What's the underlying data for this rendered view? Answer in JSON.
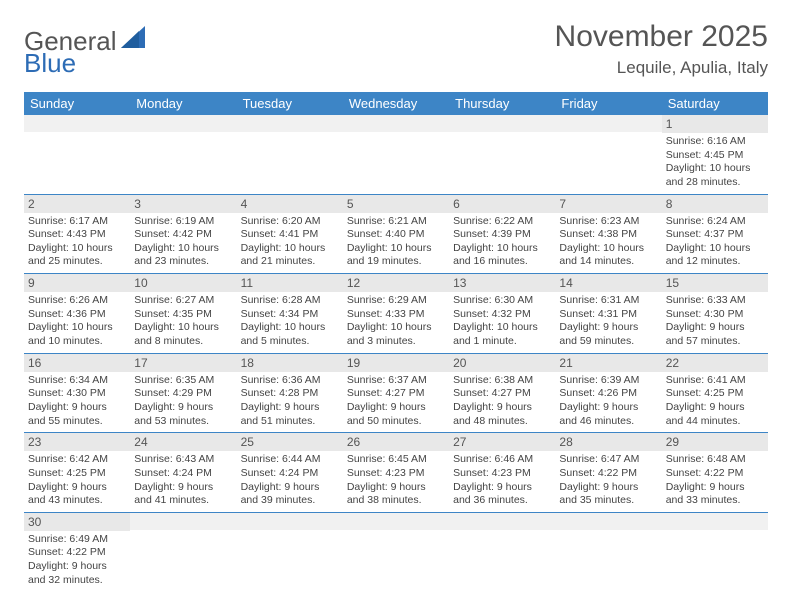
{
  "logo": {
    "word1": "General",
    "word2": "Blue"
  },
  "title": "November 2025",
  "location": "Lequile, Apulia, Italy",
  "dayHeaders": [
    "Sunday",
    "Monday",
    "Tuesday",
    "Wednesday",
    "Thursday",
    "Friday",
    "Saturday"
  ],
  "colors": {
    "headerBg": "#3d85c6",
    "rowBorder": "#3d85c6",
    "dayNumBg": "#e8e8e8",
    "text": "#444444",
    "titleColor": "#555555"
  },
  "weeks": [
    [
      {
        "empty": true
      },
      {
        "empty": true
      },
      {
        "empty": true
      },
      {
        "empty": true
      },
      {
        "empty": true
      },
      {
        "empty": true
      },
      {
        "num": "1",
        "sunrise": "Sunrise: 6:16 AM",
        "sunset": "Sunset: 4:45 PM",
        "daylight": "Daylight: 10 hours and 28 minutes."
      }
    ],
    [
      {
        "num": "2",
        "sunrise": "Sunrise: 6:17 AM",
        "sunset": "Sunset: 4:43 PM",
        "daylight": "Daylight: 10 hours and 25 minutes."
      },
      {
        "num": "3",
        "sunrise": "Sunrise: 6:19 AM",
        "sunset": "Sunset: 4:42 PM",
        "daylight": "Daylight: 10 hours and 23 minutes."
      },
      {
        "num": "4",
        "sunrise": "Sunrise: 6:20 AM",
        "sunset": "Sunset: 4:41 PM",
        "daylight": "Daylight: 10 hours and 21 minutes."
      },
      {
        "num": "5",
        "sunrise": "Sunrise: 6:21 AM",
        "sunset": "Sunset: 4:40 PM",
        "daylight": "Daylight: 10 hours and 19 minutes."
      },
      {
        "num": "6",
        "sunrise": "Sunrise: 6:22 AM",
        "sunset": "Sunset: 4:39 PM",
        "daylight": "Daylight: 10 hours and 16 minutes."
      },
      {
        "num": "7",
        "sunrise": "Sunrise: 6:23 AM",
        "sunset": "Sunset: 4:38 PM",
        "daylight": "Daylight: 10 hours and 14 minutes."
      },
      {
        "num": "8",
        "sunrise": "Sunrise: 6:24 AM",
        "sunset": "Sunset: 4:37 PM",
        "daylight": "Daylight: 10 hours and 12 minutes."
      }
    ],
    [
      {
        "num": "9",
        "sunrise": "Sunrise: 6:26 AM",
        "sunset": "Sunset: 4:36 PM",
        "daylight": "Daylight: 10 hours and 10 minutes."
      },
      {
        "num": "10",
        "sunrise": "Sunrise: 6:27 AM",
        "sunset": "Sunset: 4:35 PM",
        "daylight": "Daylight: 10 hours and 8 minutes."
      },
      {
        "num": "11",
        "sunrise": "Sunrise: 6:28 AM",
        "sunset": "Sunset: 4:34 PM",
        "daylight": "Daylight: 10 hours and 5 minutes."
      },
      {
        "num": "12",
        "sunrise": "Sunrise: 6:29 AM",
        "sunset": "Sunset: 4:33 PM",
        "daylight": "Daylight: 10 hours and 3 minutes."
      },
      {
        "num": "13",
        "sunrise": "Sunrise: 6:30 AM",
        "sunset": "Sunset: 4:32 PM",
        "daylight": "Daylight: 10 hours and 1 minute."
      },
      {
        "num": "14",
        "sunrise": "Sunrise: 6:31 AM",
        "sunset": "Sunset: 4:31 PM",
        "daylight": "Daylight: 9 hours and 59 minutes."
      },
      {
        "num": "15",
        "sunrise": "Sunrise: 6:33 AM",
        "sunset": "Sunset: 4:30 PM",
        "daylight": "Daylight: 9 hours and 57 minutes."
      }
    ],
    [
      {
        "num": "16",
        "sunrise": "Sunrise: 6:34 AM",
        "sunset": "Sunset: 4:30 PM",
        "daylight": "Daylight: 9 hours and 55 minutes."
      },
      {
        "num": "17",
        "sunrise": "Sunrise: 6:35 AM",
        "sunset": "Sunset: 4:29 PM",
        "daylight": "Daylight: 9 hours and 53 minutes."
      },
      {
        "num": "18",
        "sunrise": "Sunrise: 6:36 AM",
        "sunset": "Sunset: 4:28 PM",
        "daylight": "Daylight: 9 hours and 51 minutes."
      },
      {
        "num": "19",
        "sunrise": "Sunrise: 6:37 AM",
        "sunset": "Sunset: 4:27 PM",
        "daylight": "Daylight: 9 hours and 50 minutes."
      },
      {
        "num": "20",
        "sunrise": "Sunrise: 6:38 AM",
        "sunset": "Sunset: 4:27 PM",
        "daylight": "Daylight: 9 hours and 48 minutes."
      },
      {
        "num": "21",
        "sunrise": "Sunrise: 6:39 AM",
        "sunset": "Sunset: 4:26 PM",
        "daylight": "Daylight: 9 hours and 46 minutes."
      },
      {
        "num": "22",
        "sunrise": "Sunrise: 6:41 AM",
        "sunset": "Sunset: 4:25 PM",
        "daylight": "Daylight: 9 hours and 44 minutes."
      }
    ],
    [
      {
        "num": "23",
        "sunrise": "Sunrise: 6:42 AM",
        "sunset": "Sunset: 4:25 PM",
        "daylight": "Daylight: 9 hours and 43 minutes."
      },
      {
        "num": "24",
        "sunrise": "Sunrise: 6:43 AM",
        "sunset": "Sunset: 4:24 PM",
        "daylight": "Daylight: 9 hours and 41 minutes."
      },
      {
        "num": "25",
        "sunrise": "Sunrise: 6:44 AM",
        "sunset": "Sunset: 4:24 PM",
        "daylight": "Daylight: 9 hours and 39 minutes."
      },
      {
        "num": "26",
        "sunrise": "Sunrise: 6:45 AM",
        "sunset": "Sunset: 4:23 PM",
        "daylight": "Daylight: 9 hours and 38 minutes."
      },
      {
        "num": "27",
        "sunrise": "Sunrise: 6:46 AM",
        "sunset": "Sunset: 4:23 PM",
        "daylight": "Daylight: 9 hours and 36 minutes."
      },
      {
        "num": "28",
        "sunrise": "Sunrise: 6:47 AM",
        "sunset": "Sunset: 4:22 PM",
        "daylight": "Daylight: 9 hours and 35 minutes."
      },
      {
        "num": "29",
        "sunrise": "Sunrise: 6:48 AM",
        "sunset": "Sunset: 4:22 PM",
        "daylight": "Daylight: 9 hours and 33 minutes."
      }
    ],
    [
      {
        "num": "30",
        "sunrise": "Sunrise: 6:49 AM",
        "sunset": "Sunset: 4:22 PM",
        "daylight": "Daylight: 9 hours and 32 minutes."
      },
      {
        "empty": true
      },
      {
        "empty": true
      },
      {
        "empty": true
      },
      {
        "empty": true
      },
      {
        "empty": true
      },
      {
        "empty": true
      }
    ]
  ]
}
